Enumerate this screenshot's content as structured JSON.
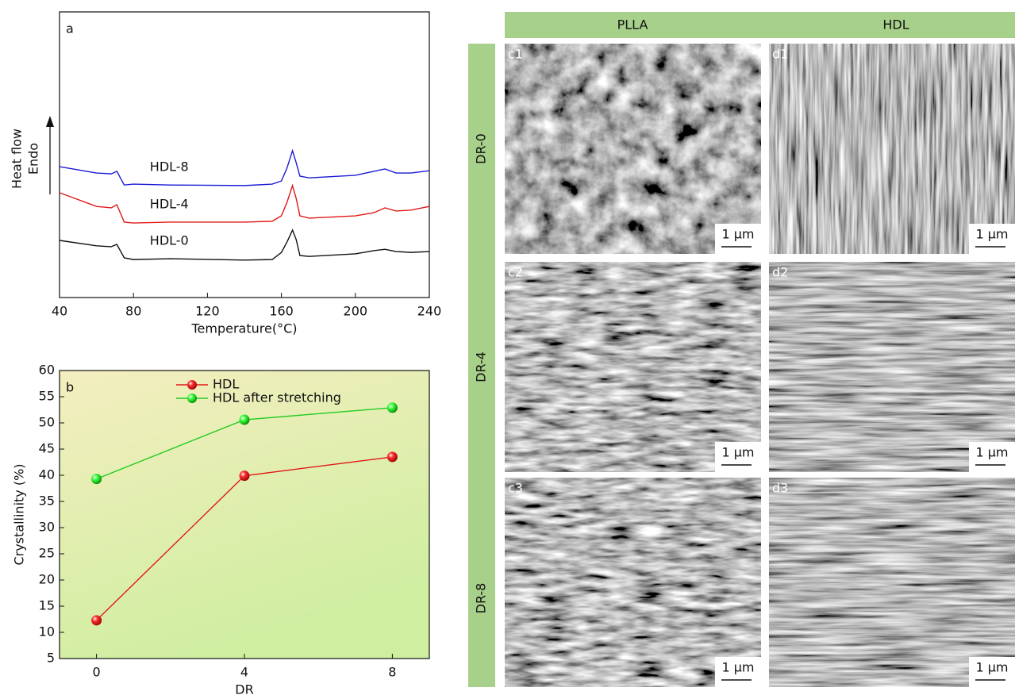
{
  "chart_data": [
    {
      "type": "line",
      "panel_label": "a",
      "xlabel": "Temperature(°C)",
      "ylabel": "Heat flow",
      "direction_label": "Endo",
      "x": [
        40,
        60,
        68,
        71,
        75,
        80,
        100,
        140,
        155,
        160,
        163,
        166,
        168,
        170,
        175,
        200,
        210,
        216,
        222,
        230,
        240
      ],
      "xlim": [
        40,
        240
      ],
      "xticks": [
        40,
        80,
        120,
        160,
        200,
        240
      ],
      "ylim": [
        0,
        100
      ],
      "series": [
        {
          "name": "HDL-8",
          "color": "#1a1ad6",
          "values": [
            45.8,
            43.6,
            43.3,
            44.2,
            39.4,
            39.7,
            39.4,
            39.2,
            39.7,
            40.8,
            45.3,
            51.4,
            47.2,
            42.5,
            41.9,
            42.8,
            44.2,
            45,
            43.6,
            43.6,
            44.4
          ]
        },
        {
          "name": "HDL-4",
          "color": "#e01818",
          "values": [
            36.7,
            31.9,
            31.4,
            32.5,
            26.4,
            26.1,
            26.4,
            26.4,
            26.7,
            28.6,
            33.3,
            39.2,
            34.7,
            28.6,
            27.8,
            28.6,
            29.7,
            31.4,
            30.3,
            30.6,
            31.9
          ]
        },
        {
          "name": "HDL-0",
          "color": "#111111",
          "values": [
            20,
            18.1,
            17.8,
            18.6,
            13.9,
            13.3,
            13.6,
            13.1,
            13.3,
            15.8,
            19.4,
            23.6,
            20.3,
            14.7,
            14.4,
            15.3,
            16.4,
            16.9,
            16.1,
            15.8,
            16.1
          ]
        }
      ]
    },
    {
      "type": "line",
      "panel_label": "b",
      "xlabel": "DR",
      "ylabel": "Crystallinity (%)",
      "x": [
        0,
        4,
        8
      ],
      "xlim": [
        -1,
        9
      ],
      "xticks": [
        0,
        4,
        8
      ],
      "ylim": [
        5,
        60
      ],
      "yticks": [
        5,
        10,
        15,
        20,
        25,
        30,
        35,
        40,
        45,
        50,
        55,
        60
      ],
      "legend": "top",
      "series": [
        {
          "name": "HDL",
          "color": "#e01818",
          "values": [
            12.3,
            39.9,
            43.5
          ]
        },
        {
          "name": "HDL after stretching",
          "color": "#22cc22",
          "values": [
            39.3,
            50.6,
            52.9
          ]
        }
      ]
    }
  ],
  "micrographs": {
    "columns": [
      "PLLA",
      "HDL"
    ],
    "rows": [
      "DR-0",
      "DR-4",
      "DR-8"
    ],
    "panels": [
      [
        "c1",
        "d1"
      ],
      [
        "c2",
        "d2"
      ],
      [
        "c3",
        "d3"
      ]
    ],
    "scale_bar": "1 µm"
  }
}
